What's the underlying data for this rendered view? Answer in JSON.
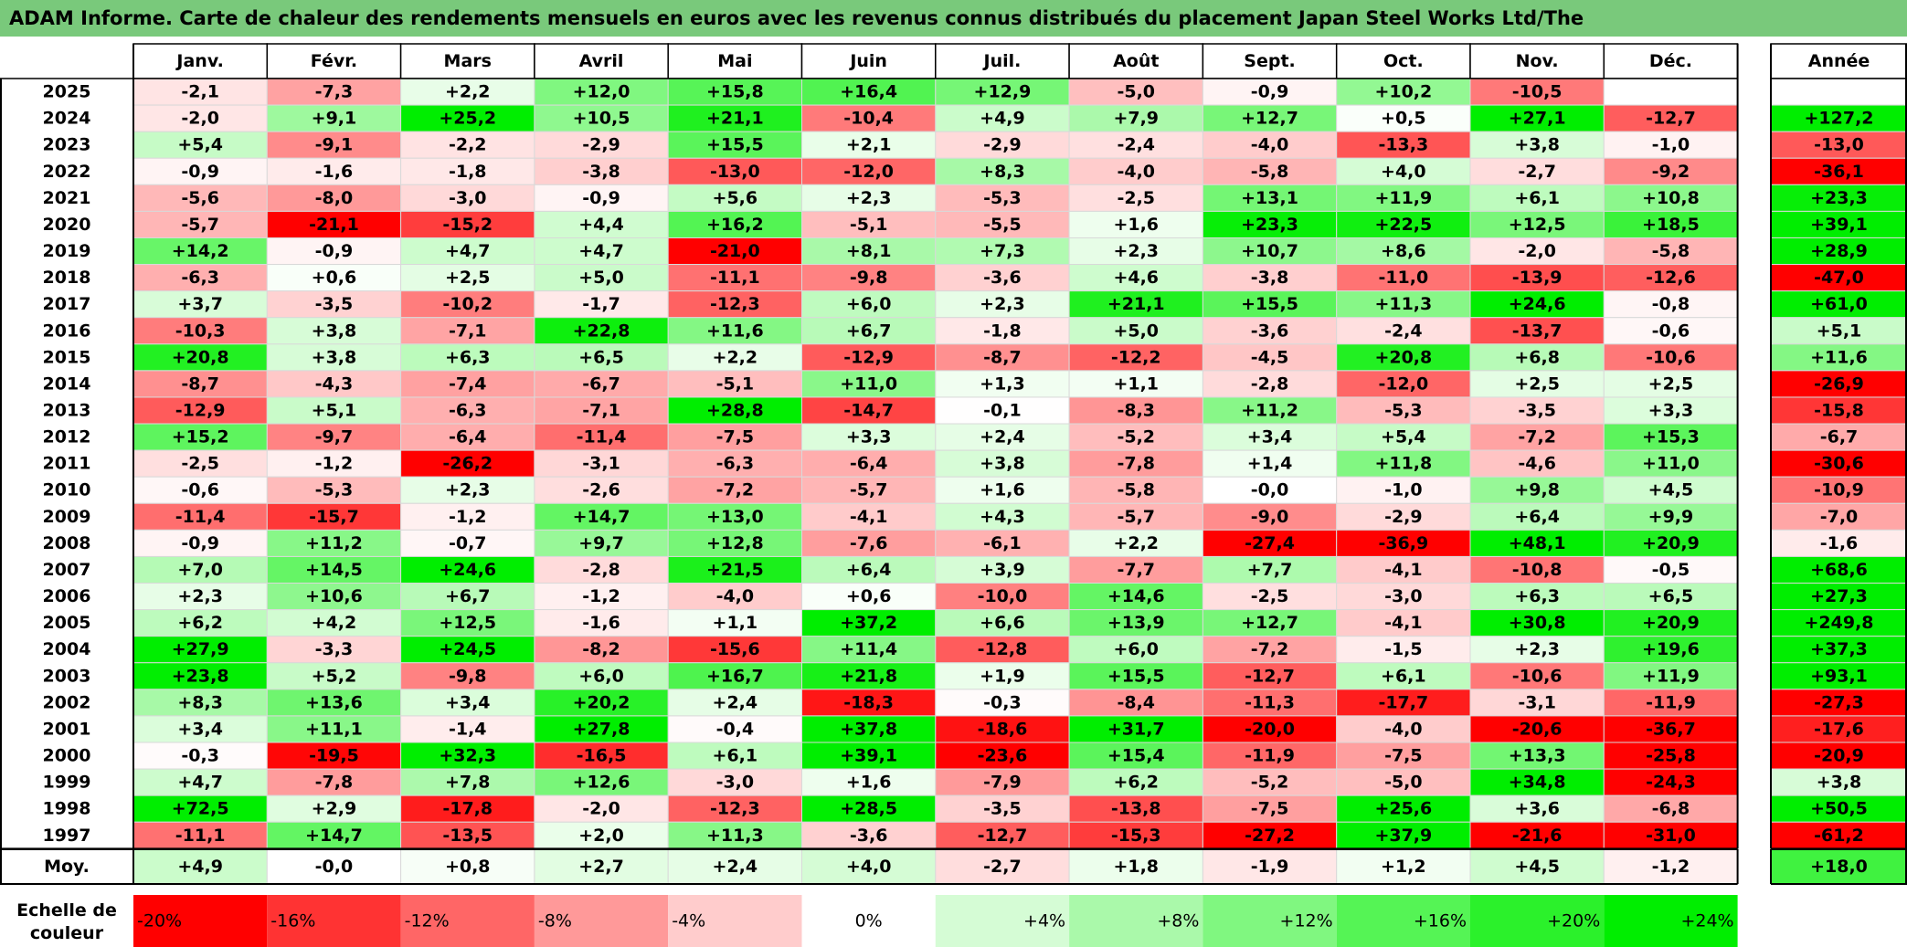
{
  "title": "ADAM Informe. Carte de chaleur des rendements mensuels en euros avec les revenus connus distribués du placement Japan Steel Works Ltd/The",
  "colors": {
    "title_bg": "#79c97b",
    "negative_max": "#ff0000",
    "neutral": "#ffffff",
    "positive_max": "#00ee00"
  },
  "chart_data": {
    "type": "heatmap",
    "months": [
      "Janv.",
      "Févr.",
      "Mars",
      "Avril",
      "Mai",
      "Juin",
      "Juil.",
      "Août",
      "Sept.",
      "Oct.",
      "Nov.",
      "Déc."
    ],
    "year_header": "Année",
    "rows": [
      {
        "year": "2025",
        "values": [
          "-2,1",
          "-7,3",
          "+2,2",
          "+12,0",
          "+15,8",
          "+16,4",
          "+12,9",
          "-5,0",
          "-0,9",
          "+10,2",
          "-10,5",
          ""
        ],
        "annual": ""
      },
      {
        "year": "2024",
        "values": [
          "-2,0",
          "+9,1",
          "+25,2",
          "+10,5",
          "+21,1",
          "-10,4",
          "+4,9",
          "+7,9",
          "+12,7",
          "+0,5",
          "+27,1",
          "-12,7"
        ],
        "annual": "+127,2"
      },
      {
        "year": "2023",
        "values": [
          "+5,4",
          "-9,1",
          "-2,2",
          "-2,9",
          "+15,5",
          "+2,1",
          "-2,9",
          "-2,4",
          "-4,0",
          "-13,3",
          "+3,8",
          "-1,0"
        ],
        "annual": "-13,0"
      },
      {
        "year": "2022",
        "values": [
          "-0,9",
          "-1,6",
          "-1,8",
          "-3,8",
          "-13,0",
          "-12,0",
          "+8,3",
          "-4,0",
          "-5,8",
          "+4,0",
          "-2,7",
          "-9,2"
        ],
        "annual": "-36,1"
      },
      {
        "year": "2021",
        "values": [
          "-5,6",
          "-8,0",
          "-3,0",
          "-0,9",
          "+5,6",
          "+2,3",
          "-5,3",
          "-2,5",
          "+13,1",
          "+11,9",
          "+6,1",
          "+10,8"
        ],
        "annual": "+23,3"
      },
      {
        "year": "2020",
        "values": [
          "-5,7",
          "-21,1",
          "-15,2",
          "+4,4",
          "+16,2",
          "-5,1",
          "-5,5",
          "+1,6",
          "+23,3",
          "+22,5",
          "+12,5",
          "+18,5"
        ],
        "annual": "+39,1"
      },
      {
        "year": "2019",
        "values": [
          "+14,2",
          "-0,9",
          "+4,7",
          "+4,7",
          "-21,0",
          "+8,1",
          "+7,3",
          "+2,3",
          "+10,7",
          "+8,6",
          "-2,0",
          "-5,8"
        ],
        "annual": "+28,9"
      },
      {
        "year": "2018",
        "values": [
          "-6,3",
          "+0,6",
          "+2,5",
          "+5,0",
          "-11,1",
          "-9,8",
          "-3,6",
          "+4,6",
          "-3,8",
          "-11,0",
          "-13,9",
          "-12,6"
        ],
        "annual": "-47,0"
      },
      {
        "year": "2017",
        "values": [
          "+3,7",
          "-3,5",
          "-10,2",
          "-1,7",
          "-12,3",
          "+6,0",
          "+2,3",
          "+21,1",
          "+15,5",
          "+11,3",
          "+24,6",
          "-0,8"
        ],
        "annual": "+61,0"
      },
      {
        "year": "2016",
        "values": [
          "-10,3",
          "+3,8",
          "-7,1",
          "+22,8",
          "+11,6",
          "+6,7",
          "-1,8",
          "+5,0",
          "-3,6",
          "-2,4",
          "-13,7",
          "-0,6"
        ],
        "annual": "+5,1"
      },
      {
        "year": "2015",
        "values": [
          "+20,8",
          "+3,8",
          "+6,3",
          "+6,5",
          "+2,2",
          "-12,9",
          "-8,7",
          "-12,2",
          "-4,5",
          "+20,8",
          "+6,8",
          "-10,6"
        ],
        "annual": "+11,6"
      },
      {
        "year": "2014",
        "values": [
          "-8,7",
          "-4,3",
          "-7,4",
          "-6,7",
          "-5,1",
          "+11,0",
          "+1,3",
          "+1,1",
          "-2,8",
          "-12,0",
          "+2,5",
          "+2,5"
        ],
        "annual": "-26,9"
      },
      {
        "year": "2013",
        "values": [
          "-12,9",
          "+5,1",
          "-6,3",
          "-7,1",
          "+28,8",
          "-14,7",
          "-0,1",
          "-8,3",
          "+11,2",
          "-5,3",
          "-3,5",
          "+3,3"
        ],
        "annual": "-15,8"
      },
      {
        "year": "2012",
        "values": [
          "+15,2",
          "-9,7",
          "-6,4",
          "-11,4",
          "-7,5",
          "+3,3",
          "+2,4",
          "-5,2",
          "+3,4",
          "+5,4",
          "-7,2",
          "+15,3"
        ],
        "annual": "-6,7"
      },
      {
        "year": "2011",
        "values": [
          "-2,5",
          "-1,2",
          "-26,2",
          "-3,1",
          "-6,3",
          "-6,4",
          "+3,8",
          "-7,8",
          "+1,4",
          "+11,8",
          "-4,6",
          "+11,0"
        ],
        "annual": "-30,6"
      },
      {
        "year": "2010",
        "values": [
          "-0,6",
          "-5,3",
          "+2,3",
          "-2,6",
          "-7,2",
          "-5,7",
          "+1,6",
          "-5,8",
          "-0,0",
          "-1,0",
          "+9,8",
          "+4,5"
        ],
        "annual": "-10,9"
      },
      {
        "year": "2009",
        "values": [
          "-11,4",
          "-15,7",
          "-1,2",
          "+14,7",
          "+13,0",
          "-4,1",
          "+4,3",
          "-5,7",
          "-9,0",
          "-2,9",
          "+6,4",
          "+9,9"
        ],
        "annual": "-7,0"
      },
      {
        "year": "2008",
        "values": [
          "-0,9",
          "+11,2",
          "-0,7",
          "+9,7",
          "+12,8",
          "-7,6",
          "-6,1",
          "+2,2",
          "-27,4",
          "-36,9",
          "+48,1",
          "+20,9"
        ],
        "annual": "-1,6"
      },
      {
        "year": "2007",
        "values": [
          "+7,0",
          "+14,5",
          "+24,6",
          "-2,8",
          "+21,5",
          "+6,4",
          "+3,9",
          "-7,7",
          "+7,7",
          "-4,1",
          "-10,8",
          "-0,5"
        ],
        "annual": "+68,6"
      },
      {
        "year": "2006",
        "values": [
          "+2,3",
          "+10,6",
          "+6,7",
          "-1,2",
          "-4,0",
          "+0,6",
          "-10,0",
          "+14,6",
          "-2,5",
          "-3,0",
          "+6,3",
          "+6,5"
        ],
        "annual": "+27,3"
      },
      {
        "year": "2005",
        "values": [
          "+6,2",
          "+4,2",
          "+12,5",
          "-1,6",
          "+1,1",
          "+37,2",
          "+6,6",
          "+13,9",
          "+12,7",
          "-4,1",
          "+30,8",
          "+20,9"
        ],
        "annual": "+249,8"
      },
      {
        "year": "2004",
        "values": [
          "+27,9",
          "-3,3",
          "+24,5",
          "-8,2",
          "-15,6",
          "+11,4",
          "-12,8",
          "+6,0",
          "-7,2",
          "-1,5",
          "+2,3",
          "+19,6"
        ],
        "annual": "+37,3"
      },
      {
        "year": "2003",
        "values": [
          "+23,8",
          "+5,2",
          "-9,8",
          "+6,0",
          "+16,7",
          "+21,8",
          "+1,9",
          "+15,5",
          "-12,7",
          "+6,1",
          "-10,6",
          "+11,9"
        ],
        "annual": "+93,1"
      },
      {
        "year": "2002",
        "values": [
          "+8,3",
          "+13,6",
          "+3,4",
          "+20,2",
          "+2,4",
          "-18,3",
          "-0,3",
          "-8,4",
          "-11,3",
          "-17,7",
          "-3,1",
          "-11,9"
        ],
        "annual": "-27,3"
      },
      {
        "year": "2001",
        "values": [
          "+3,4",
          "+11,1",
          "-1,4",
          "+27,8",
          "-0,4",
          "+37,8",
          "-18,6",
          "+31,7",
          "-20,0",
          "-4,0",
          "-20,6",
          "-36,7"
        ],
        "annual": "-17,6"
      },
      {
        "year": "2000",
        "values": [
          "-0,3",
          "-19,5",
          "+32,3",
          "-16,5",
          "+6,1",
          "+39,1",
          "-23,6",
          "+15,4",
          "-11,9",
          "-7,5",
          "+13,3",
          "-25,8"
        ],
        "annual": "-20,9"
      },
      {
        "year": "1999",
        "values": [
          "+4,7",
          "-7,8",
          "+7,8",
          "+12,6",
          "-3,0",
          "+1,6",
          "-7,9",
          "+6,2",
          "-5,2",
          "-5,0",
          "+34,8",
          "-24,3"
        ],
        "annual": "+3,8"
      },
      {
        "year": "1998",
        "values": [
          "+72,5",
          "+2,9",
          "-17,8",
          "-2,0",
          "-12,3",
          "+28,5",
          "-3,5",
          "-13,8",
          "-7,5",
          "+25,6",
          "+3,6",
          "-6,8"
        ],
        "annual": "+50,5"
      },
      {
        "year": "1997",
        "values": [
          "-11,1",
          "+14,7",
          "-13,5",
          "+2,0",
          "+11,3",
          "-3,6",
          "-12,7",
          "-15,3",
          "-27,2",
          "+37,9",
          "-21,6",
          "-31,0"
        ],
        "annual": "-61,2"
      }
    ],
    "average": {
      "label": "Moy.",
      "values": [
        "+4,9",
        "-0,0",
        "+0,8",
        "+2,7",
        "+2,4",
        "+4,0",
        "-2,7",
        "+1,8",
        "-1,9",
        "+1,2",
        "+4,5",
        "-1,2"
      ],
      "annual": "+18,0"
    },
    "scale": {
      "label_line1": "Echelle de",
      "label_line2": "couleur",
      "steps": [
        "-20%",
        "-16%",
        "-12%",
        "-8%",
        "-4%",
        "0%",
        "+4%",
        "+8%",
        "+12%",
        "+16%",
        "+20%",
        "+24%"
      ]
    }
  }
}
